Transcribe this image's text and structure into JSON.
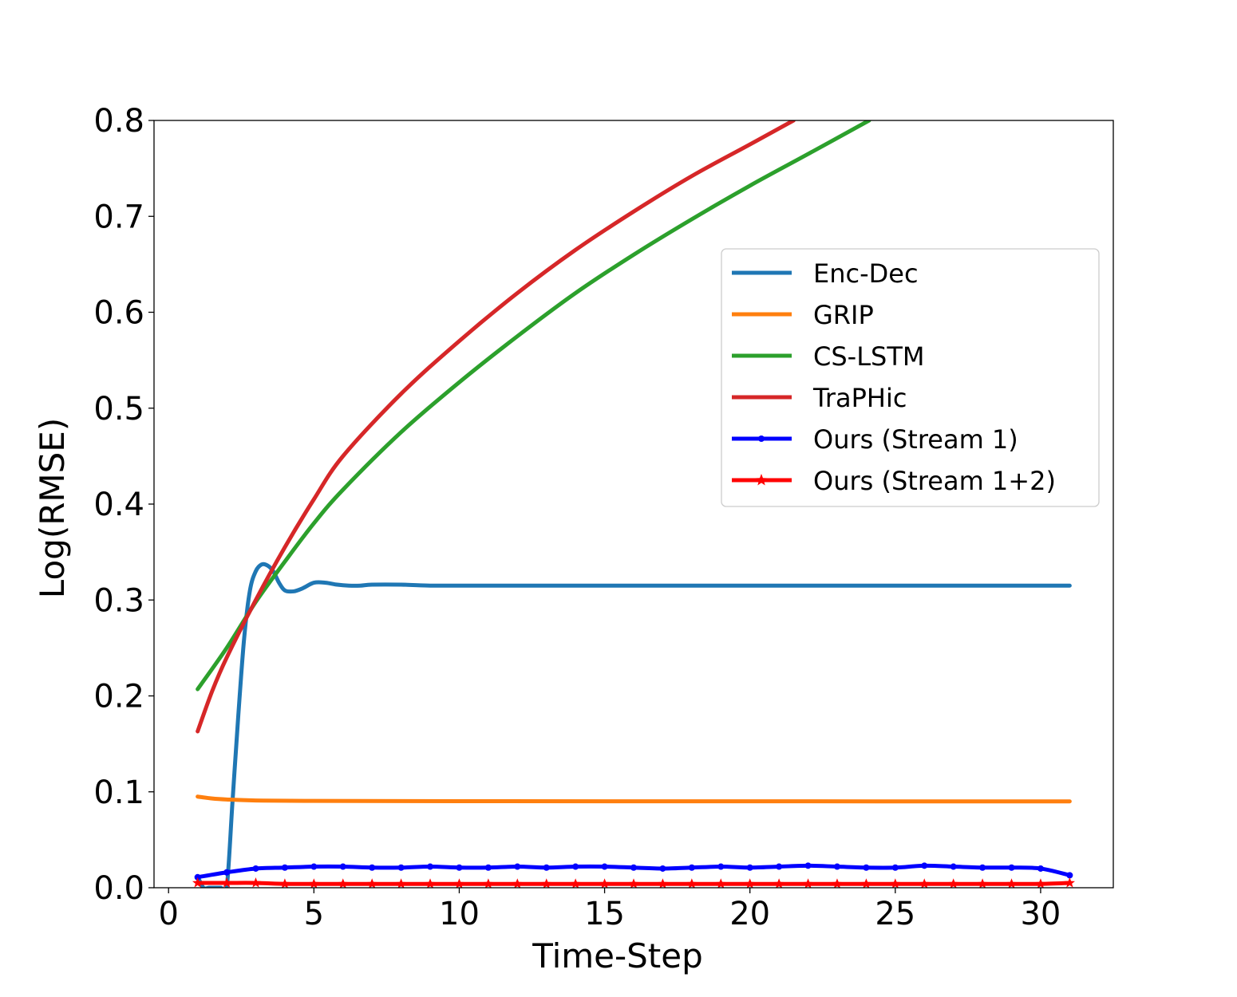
{
  "chart_data": {
    "type": "line",
    "title": "",
    "xlabel": "Time-Step",
    "ylabel": "Log(RMSE)",
    "xlim": [
      -0.5,
      32.5
    ],
    "ylim": [
      0.0,
      0.8
    ],
    "xticks": [
      0,
      5,
      10,
      15,
      20,
      25,
      30
    ],
    "yticks": [
      0.0,
      0.1,
      0.2,
      0.3,
      0.4,
      0.5,
      0.6,
      0.7,
      0.8
    ],
    "xtick_labels": [
      "0",
      "5",
      "10",
      "15",
      "20",
      "25",
      "30"
    ],
    "ytick_labels": [
      "0.0",
      "0.1",
      "0.2",
      "0.3",
      "0.4",
      "0.5",
      "0.6",
      "0.7",
      "0.8"
    ],
    "grid": false,
    "legend_position": "upper right",
    "series": [
      {
        "name": "Enc-Dec",
        "color": "#1f77b4",
        "marker": "none",
        "x": [
          1,
          1.2,
          1.4,
          1.6,
          1.8,
          2,
          2.2,
          2.4,
          2.6,
          2.8,
          3,
          3.2,
          3.4,
          3.6,
          3.8,
          4,
          4.3,
          4.6,
          5,
          5.4,
          5.8,
          6.2,
          6.6,
          7,
          8,
          9,
          10,
          12,
          15,
          20,
          25,
          31
        ],
        "y": [
          0.012,
          0.0,
          0.0,
          0.0,
          0.0,
          0.0,
          0.09,
          0.18,
          0.26,
          0.31,
          0.33,
          0.337,
          0.336,
          0.33,
          0.318,
          0.31,
          0.309,
          0.312,
          0.318,
          0.318,
          0.316,
          0.315,
          0.315,
          0.316,
          0.316,
          0.315,
          0.315,
          0.315,
          0.315,
          0.315,
          0.315,
          0.315
        ]
      },
      {
        "name": "GRIP",
        "color": "#ff7f0e",
        "marker": "none",
        "x": [
          1,
          1.5,
          2,
          3,
          5,
          10,
          20,
          31
        ],
        "y": [
          0.095,
          0.093,
          0.092,
          0.091,
          0.0905,
          0.0902,
          0.0901,
          0.09
        ]
      },
      {
        "name": "CS-LSTM",
        "color": "#2ca02c",
        "marker": "none",
        "x": [
          1,
          2,
          3,
          4,
          5,
          6,
          8,
          10,
          12,
          14,
          16,
          18,
          20,
          22,
          24.1
        ],
        "y": [
          0.207,
          0.25,
          0.298,
          0.34,
          0.38,
          0.415,
          0.475,
          0.527,
          0.575,
          0.62,
          0.66,
          0.697,
          0.732,
          0.765,
          0.8
        ]
      },
      {
        "name": "TraPHic",
        "color": "#d62728",
        "marker": "none",
        "x": [
          1,
          1.5,
          2,
          3,
          4,
          5,
          6,
          8,
          10,
          12,
          14,
          16,
          18,
          20,
          21.5
        ],
        "y": [
          0.163,
          0.205,
          0.24,
          0.3,
          0.355,
          0.405,
          0.45,
          0.515,
          0.57,
          0.62,
          0.665,
          0.705,
          0.742,
          0.775,
          0.8
        ]
      },
      {
        "name": "Ours (Stream 1)",
        "color": "#0000ff",
        "marker": "dot",
        "x": [
          1,
          2,
          3,
          4,
          5,
          6,
          7,
          8,
          9,
          10,
          11,
          12,
          13,
          14,
          15,
          16,
          17,
          18,
          19,
          20,
          21,
          22,
          23,
          24,
          25,
          26,
          27,
          28,
          29,
          30,
          31
        ],
        "y": [
          0.011,
          0.016,
          0.02,
          0.021,
          0.022,
          0.022,
          0.021,
          0.021,
          0.022,
          0.021,
          0.021,
          0.022,
          0.021,
          0.022,
          0.022,
          0.021,
          0.02,
          0.021,
          0.022,
          0.021,
          0.022,
          0.023,
          0.022,
          0.021,
          0.021,
          0.023,
          0.022,
          0.021,
          0.021,
          0.02,
          0.013
        ]
      },
      {
        "name": "Ours (Stream 1+2)",
        "color": "#ff0000",
        "marker": "star",
        "x": [
          1,
          2,
          3,
          4,
          5,
          6,
          7,
          8,
          9,
          10,
          11,
          12,
          13,
          14,
          15,
          16,
          17,
          18,
          19,
          20,
          21,
          22,
          23,
          24,
          25,
          26,
          27,
          28,
          29,
          30,
          31
        ],
        "y": [
          0.005,
          0.005,
          0.005,
          0.004,
          0.004,
          0.004,
          0.004,
          0.004,
          0.004,
          0.004,
          0.004,
          0.004,
          0.004,
          0.004,
          0.004,
          0.004,
          0.004,
          0.004,
          0.004,
          0.004,
          0.004,
          0.004,
          0.004,
          0.004,
          0.004,
          0.004,
          0.004,
          0.004,
          0.004,
          0.004,
          0.005
        ]
      }
    ]
  }
}
